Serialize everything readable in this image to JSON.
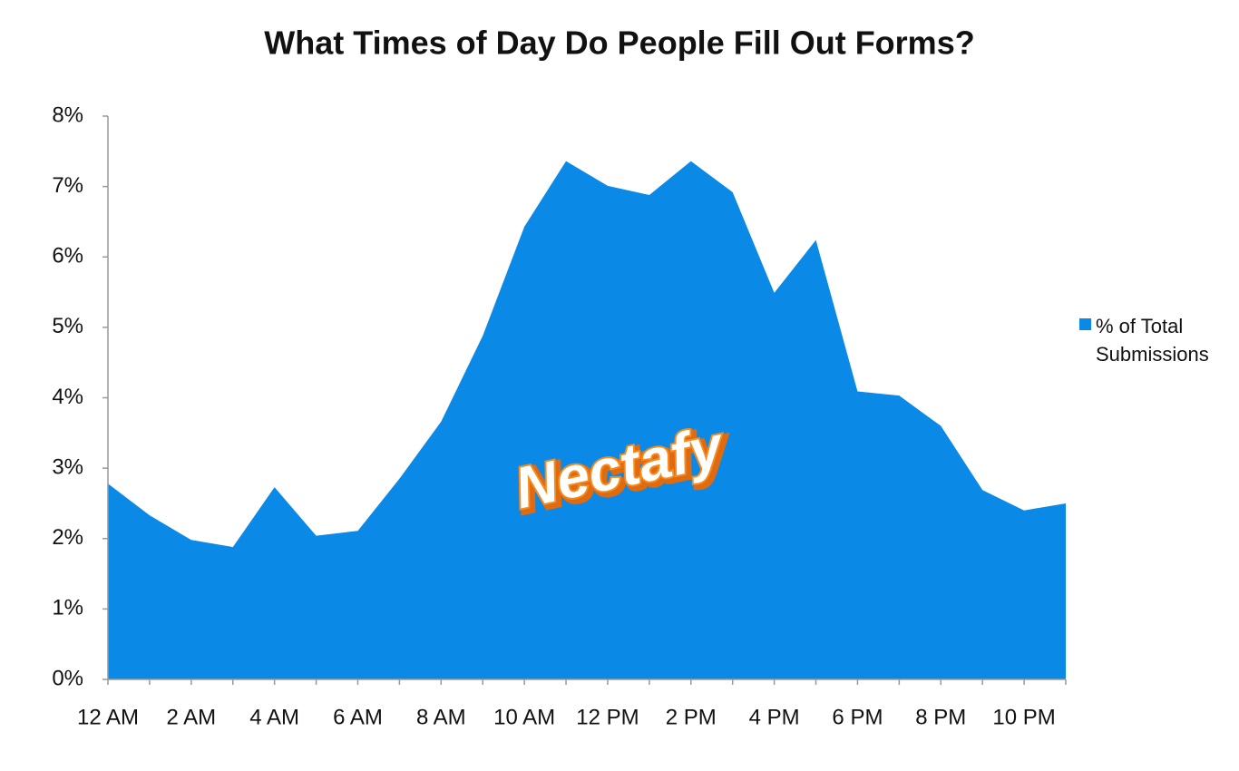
{
  "chart_data": {
    "type": "area",
    "title": "What Times of Day Do People Fill Out Forms?",
    "categories": [
      "12 AM",
      null,
      "2 AM",
      null,
      "4 AM",
      null,
      "6 AM",
      null,
      "8 AM",
      null,
      "10 AM",
      null,
      "12 PM",
      null,
      "2 PM",
      null,
      "4 PM",
      null,
      "6 PM",
      null,
      "8 PM",
      null,
      "10 PM",
      null
    ],
    "series": [
      {
        "name": "% of Total Submissions",
        "color": "#0a89e6",
        "values": [
          2.78,
          2.33,
          1.98,
          1.88,
          2.73,
          2.04,
          2.11,
          2.85,
          3.66,
          4.88,
          6.43,
          7.36,
          7.01,
          6.88,
          7.36,
          6.92,
          5.49,
          6.24,
          4.09,
          4.03,
          3.6,
          2.69,
          2.4,
          2.5
        ]
      }
    ],
    "ylim": [
      0,
      8
    ],
    "yticks": [
      {
        "value": 0,
        "label": "0%"
      },
      {
        "value": 1,
        "label": "1%"
      },
      {
        "value": 2,
        "label": "2%"
      },
      {
        "value": 3,
        "label": "3%"
      },
      {
        "value": 4,
        "label": "4%"
      },
      {
        "value": 5,
        "label": "5%"
      },
      {
        "value": 6,
        "label": "6%"
      },
      {
        "value": 7,
        "label": "7%"
      },
      {
        "value": 8,
        "label": "8%"
      }
    ],
    "legend": "right",
    "logo": "Nectafy"
  }
}
